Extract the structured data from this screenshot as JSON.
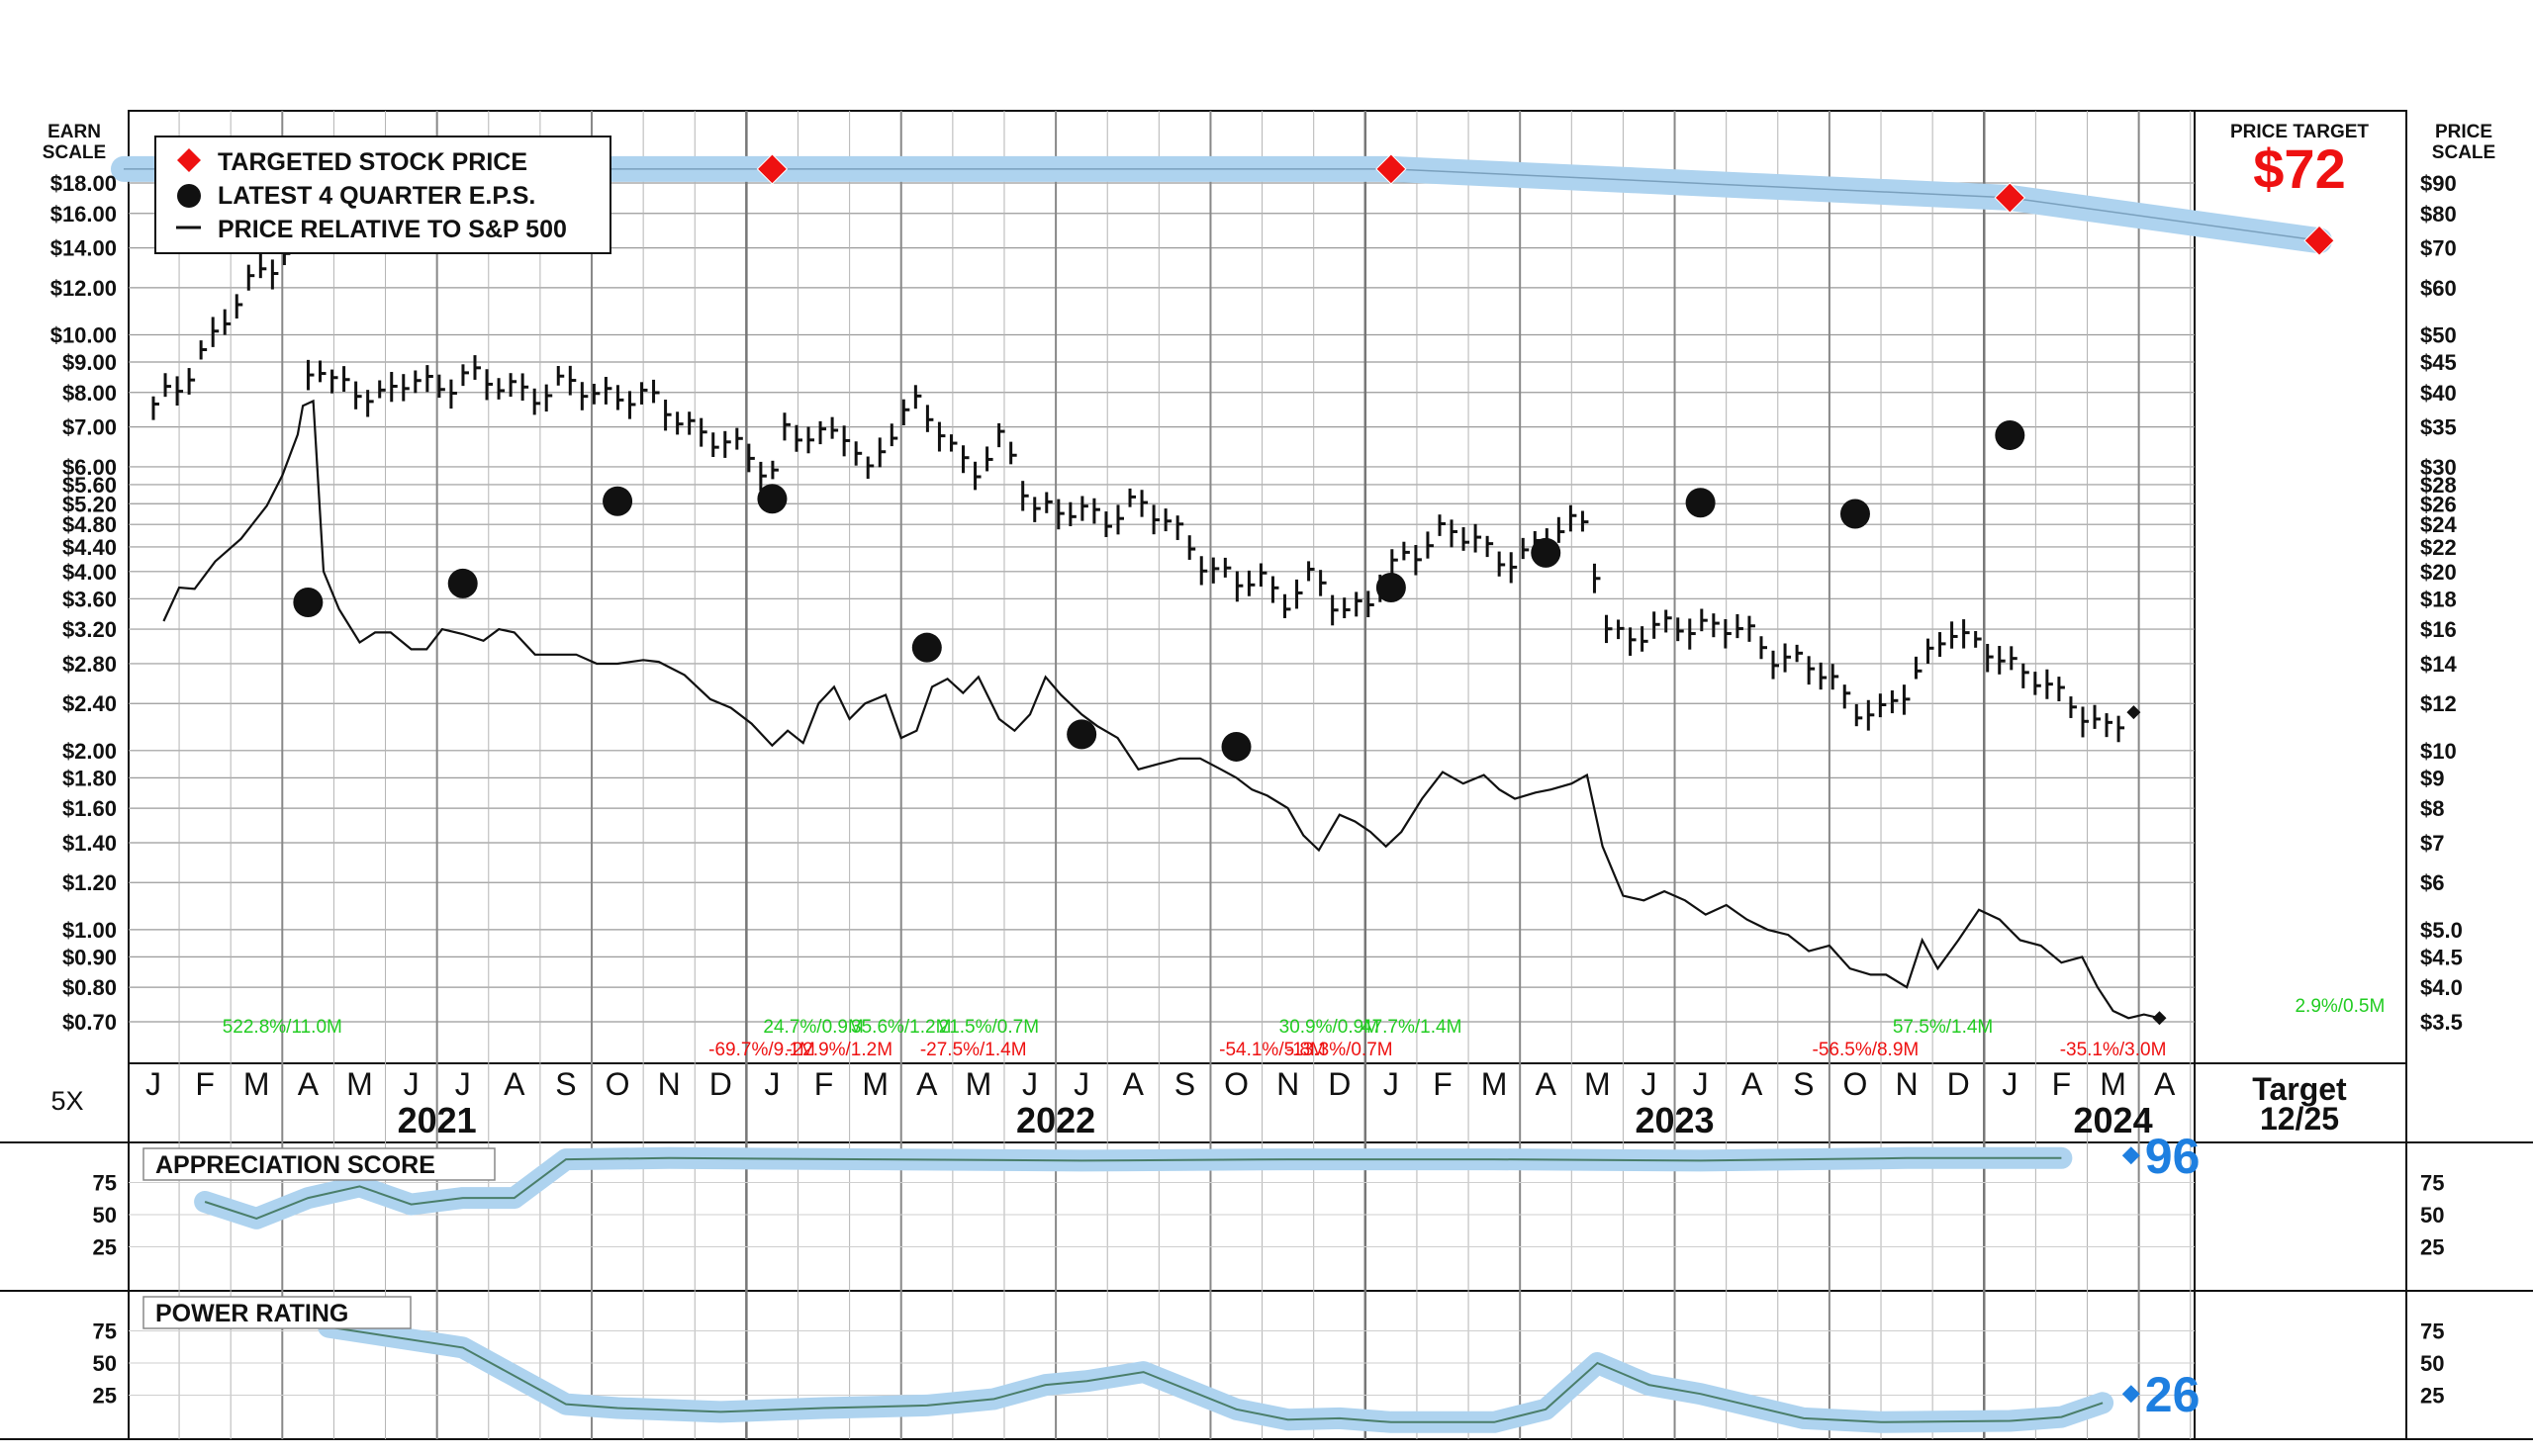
{
  "header": {
    "earn_scale": [
      "EARN",
      "SCALE"
    ],
    "price_scale": [
      "PRICE",
      "SCALE"
    ],
    "price_target_label": "PRICE TARGET",
    "price_target_value": "$72",
    "target_label": "Target",
    "target_date": "12/25",
    "multiplier": "5X"
  },
  "legend": {
    "targeted": "TARGETED STOCK PRICE",
    "eps": "LATEST 4 QUARTER E.P.S.",
    "relative": "PRICE RELATIVE TO S&P 500"
  },
  "colors": {
    "target_diamond": "#ee1111",
    "band": "#aed3ef",
    "band_line": "#7aa0bd",
    "score_blue": "#1e7fe0",
    "gain_green": "#22cc22",
    "loss_red": "#ee1111",
    "grid": "#9a9a9a"
  },
  "chart_data": {
    "type": "line",
    "title": "",
    "ylabel_left": "EARN SCALE",
    "ylabel_right": "PRICE SCALE",
    "scale": "log",
    "earn_ticks": [
      "$18.00",
      "$16.00",
      "$14.00",
      "$12.00",
      "$10.00",
      "$9.00",
      "$8.00",
      "$7.00",
      "$6.00",
      "$5.60",
      "$5.20",
      "$4.80",
      "$4.40",
      "$4.00",
      "$3.60",
      "$3.20",
      "$2.80",
      "$2.40",
      "$2.00",
      "$1.80",
      "$1.60",
      "$1.40",
      "$1.20",
      "$1.00",
      "$0.90",
      "$0.80",
      "$0.70"
    ],
    "earn_tick_values": [
      18,
      16,
      14,
      12,
      10,
      9,
      8,
      7,
      6,
      5.6,
      5.2,
      4.8,
      4.4,
      4,
      3.6,
      3.2,
      2.8,
      2.4,
      2,
      1.8,
      1.6,
      1.4,
      1.2,
      1,
      0.9,
      0.8,
      0.7
    ],
    "price_ticks": [
      "$90",
      "$80",
      "$70",
      "$60",
      "$50",
      "$45",
      "$40",
      "$35",
      "$30",
      "$28",
      "$26",
      "$24",
      "$22",
      "$20",
      "$18",
      "$16",
      "$14",
      "$12",
      "$10",
      "$9",
      "$8",
      "$7",
      "$6",
      "$5.0",
      "$4.5",
      "$4.0",
      "$3.5"
    ],
    "price_tick_values": [
      90,
      80,
      70,
      60,
      50,
      45,
      40,
      35,
      30,
      28,
      26,
      24,
      22,
      20,
      18,
      16,
      14,
      12,
      10,
      9,
      8,
      7,
      6,
      5,
      4.5,
      4,
      3.5
    ],
    "months": [
      "J",
      "F",
      "M",
      "A",
      "M",
      "J",
      "J",
      "A",
      "S",
      "O",
      "N",
      "D",
      "J",
      "F",
      "M",
      "A",
      "M",
      "J",
      "J",
      "A",
      "S",
      "O",
      "N",
      "D",
      "J",
      "F",
      "M",
      "A",
      "M",
      "J",
      "J",
      "A",
      "S",
      "O",
      "N",
      "D",
      "J",
      "F",
      "M",
      "A"
    ],
    "years": [
      {
        "label": "2021",
        "month_index": 5.5
      },
      {
        "label": "2022",
        "month_index": 17.5
      },
      {
        "label": "2023",
        "month_index": 29.5
      },
      {
        "label": "2024",
        "month_index": 38
      }
    ],
    "series": [
      {
        "name": "TARGETED STOCK PRICE",
        "points": [
          [
            0,
            100
          ],
          [
            12,
            100
          ],
          [
            24,
            100
          ],
          [
            36,
            85
          ],
          [
            42,
            72
          ]
        ]
      },
      {
        "name": "LATEST 4 QUARTER E.P.S.",
        "points": [
          [
            3,
            3.55
          ],
          [
            6,
            3.82
          ],
          [
            9,
            5.25
          ],
          [
            12,
            5.3
          ],
          [
            15,
            2.98
          ],
          [
            18,
            2.13
          ],
          [
            21,
            2.03
          ],
          [
            24,
            3.76
          ],
          [
            27,
            4.3
          ],
          [
            30,
            5.22
          ],
          [
            33,
            5.0
          ],
          [
            36,
            6.78
          ]
        ]
      },
      {
        "name": "PRICE RELATIVE TO S&P 500",
        "points": [
          [
            0.2,
            16.5
          ],
          [
            0.5,
            18.8
          ],
          [
            0.8,
            18.7
          ],
          [
            1.2,
            20.8
          ],
          [
            1.7,
            22.7
          ],
          [
            2.2,
            25.8
          ],
          [
            2.5,
            29
          ],
          [
            2.8,
            34
          ],
          [
            2.9,
            38
          ],
          [
            3.1,
            38.7
          ],
          [
            3.3,
            20
          ],
          [
            3.6,
            17.3
          ],
          [
            4.0,
            15.2
          ],
          [
            4.3,
            15.8
          ],
          [
            4.6,
            15.8
          ],
          [
            5.0,
            14.8
          ],
          [
            5.3,
            14.8
          ],
          [
            5.6,
            16
          ],
          [
            6.0,
            15.7
          ],
          [
            6.4,
            15.3
          ],
          [
            6.7,
            16
          ],
          [
            7.0,
            15.8
          ],
          [
            7.4,
            14.5
          ],
          [
            7.8,
            14.5
          ],
          [
            8.2,
            14.5
          ],
          [
            8.6,
            14
          ],
          [
            9.0,
            14
          ],
          [
            9.5,
            14.2
          ],
          [
            9.8,
            14.1
          ],
          [
            10.3,
            13.4
          ],
          [
            10.8,
            12.2
          ],
          [
            11.2,
            11.8
          ],
          [
            11.6,
            11.1
          ],
          [
            12.0,
            10.2
          ],
          [
            12.3,
            10.8
          ],
          [
            12.6,
            10.3
          ],
          [
            12.9,
            12
          ],
          [
            13.2,
            12.8
          ],
          [
            13.5,
            11.3
          ],
          [
            13.8,
            12
          ],
          [
            14.2,
            12.4
          ],
          [
            14.5,
            10.5
          ],
          [
            14.8,
            10.8
          ],
          [
            15.1,
            12.8
          ],
          [
            15.4,
            13.2
          ],
          [
            15.7,
            12.5
          ],
          [
            16.0,
            13.3
          ],
          [
            16.4,
            11.3
          ],
          [
            16.7,
            10.8
          ],
          [
            17.0,
            11.5
          ],
          [
            17.3,
            13.3
          ],
          [
            17.6,
            12.4
          ],
          [
            18.0,
            11.5
          ],
          [
            18.3,
            11
          ],
          [
            18.7,
            10.5
          ],
          [
            19.1,
            9.3
          ],
          [
            19.5,
            9.5
          ],
          [
            19.9,
            9.7
          ],
          [
            20.3,
            9.7
          ],
          [
            20.7,
            9.3
          ],
          [
            21.0,
            9.0
          ],
          [
            21.3,
            8.6
          ],
          [
            21.6,
            8.4
          ],
          [
            22.0,
            8
          ],
          [
            22.3,
            7.2
          ],
          [
            22.6,
            6.8
          ],
          [
            23.0,
            7.8
          ],
          [
            23.3,
            7.6
          ],
          [
            23.6,
            7.3
          ],
          [
            23.9,
            6.9
          ],
          [
            24.2,
            7.3
          ],
          [
            24.6,
            8.3
          ],
          [
            25.0,
            9.2
          ],
          [
            25.4,
            8.8
          ],
          [
            25.8,
            9.1
          ],
          [
            26.1,
            8.6
          ],
          [
            26.4,
            8.3
          ],
          [
            26.8,
            8.5
          ],
          [
            27.1,
            8.6
          ],
          [
            27.5,
            8.8
          ],
          [
            27.8,
            9.1
          ],
          [
            28.1,
            6.9
          ],
          [
            28.5,
            5.7
          ],
          [
            28.9,
            5.6
          ],
          [
            29.3,
            5.8
          ],
          [
            29.7,
            5.6
          ],
          [
            30.1,
            5.3
          ],
          [
            30.5,
            5.5
          ],
          [
            30.9,
            5.2
          ],
          [
            31.3,
            5.0
          ],
          [
            31.7,
            4.9
          ],
          [
            32.1,
            4.6
          ],
          [
            32.5,
            4.7
          ],
          [
            32.9,
            4.3
          ],
          [
            33.3,
            4.2
          ],
          [
            33.6,
            4.2
          ],
          [
            34.0,
            4.0
          ],
          [
            34.3,
            4.8
          ],
          [
            34.6,
            4.3
          ],
          [
            35.0,
            4.8
          ],
          [
            35.4,
            5.4
          ],
          [
            35.8,
            5.2
          ],
          [
            36.2,
            4.8
          ],
          [
            36.6,
            4.7
          ],
          [
            37.0,
            4.4
          ],
          [
            37.4,
            4.5
          ],
          [
            37.7,
            4.0
          ],
          [
            38.0,
            3.65
          ],
          [
            38.3,
            3.55
          ],
          [
            38.6,
            3.6
          ],
          [
            38.9,
            3.55
          ]
        ]
      }
    ],
    "volume_annotations": [
      {
        "text": "522.8%/11.0M",
        "month_index": 2.5,
        "row": 0,
        "color": "gain"
      },
      {
        "text": "24.7%/0.9M",
        "month_index": 12.8,
        "row": 0,
        "color": "gain"
      },
      {
        "text": "35.6%/1.2M",
        "month_index": 14.5,
        "row": 0,
        "color": "gain"
      },
      {
        "text": "21.5%/0.7M",
        "month_index": 16.2,
        "row": 0,
        "color": "gain"
      },
      {
        "text": "30.9%/0.9M",
        "month_index": 22.8,
        "row": 0,
        "color": "gain"
      },
      {
        "text": "47.7%/1.4M",
        "month_index": 24.4,
        "row": 0,
        "color": "gain"
      },
      {
        "text": "57.5%/1.4M",
        "month_index": 34.7,
        "row": 0,
        "color": "gain"
      },
      {
        "text": "2.9%/0.5M",
        "month_index": 42.4,
        "row": -0.6,
        "color": "gain"
      },
      {
        "text": "-69.7%/9.1M",
        "month_index": 11.8,
        "row": 1,
        "color": "loss"
      },
      {
        "text": "-22.9%/1.2M",
        "month_index": 13.3,
        "row": 1,
        "color": "loss"
      },
      {
        "text": "-27.5%/1.4M",
        "month_index": 15.9,
        "row": 1,
        "color": "loss"
      },
      {
        "text": "-54.1%/5.8M",
        "month_index": 21.7,
        "row": 1,
        "color": "loss"
      },
      {
        "text": "-13.3%/0.7M",
        "month_index": 23.0,
        "row": 1,
        "color": "loss"
      },
      {
        "text": "-56.5%/8.9M",
        "month_index": 33.2,
        "row": 1,
        "color": "loss"
      },
      {
        "text": "-35.1%/3.0M",
        "month_index": 38.0,
        "row": 1,
        "color": "loss"
      }
    ],
    "appreciation_score": {
      "title": "APPRECIATION SCORE",
      "current": "96",
      "current_value": 96,
      "ticks": [
        75,
        50,
        25
      ],
      "points": [
        [
          1,
          60
        ],
        [
          2,
          47
        ],
        [
          3,
          63
        ],
        [
          4,
          72
        ],
        [
          5,
          58
        ],
        [
          6,
          63
        ],
        [
          7,
          63
        ],
        [
          8,
          93
        ],
        [
          10,
          94
        ],
        [
          14,
          93
        ],
        [
          18,
          92
        ],
        [
          22,
          93
        ],
        [
          26,
          93
        ],
        [
          30,
          92
        ],
        [
          34,
          94
        ],
        [
          37,
          94
        ]
      ]
    },
    "power_rating": {
      "title": "POWER RATING",
      "current": "26",
      "current_value": 26,
      "ticks": [
        75,
        50,
        25
      ],
      "points": [
        [
          3.4,
          78
        ],
        [
          6,
          62
        ],
        [
          8,
          18
        ],
        [
          9,
          15
        ],
        [
          11,
          12
        ],
        [
          13,
          15
        ],
        [
          15,
          17
        ],
        [
          16.3,
          22
        ],
        [
          17.3,
          33
        ],
        [
          18.1,
          36
        ],
        [
          19.2,
          43
        ],
        [
          21,
          14
        ],
        [
          22,
          6
        ],
        [
          23,
          7
        ],
        [
          24,
          4
        ],
        [
          26,
          4
        ],
        [
          27,
          14
        ],
        [
          28,
          50
        ],
        [
          29,
          33
        ],
        [
          30,
          26
        ],
        [
          32,
          7
        ],
        [
          33.5,
          4
        ],
        [
          36,
          5
        ],
        [
          37,
          8
        ],
        [
          37.8,
          19
        ]
      ]
    }
  }
}
